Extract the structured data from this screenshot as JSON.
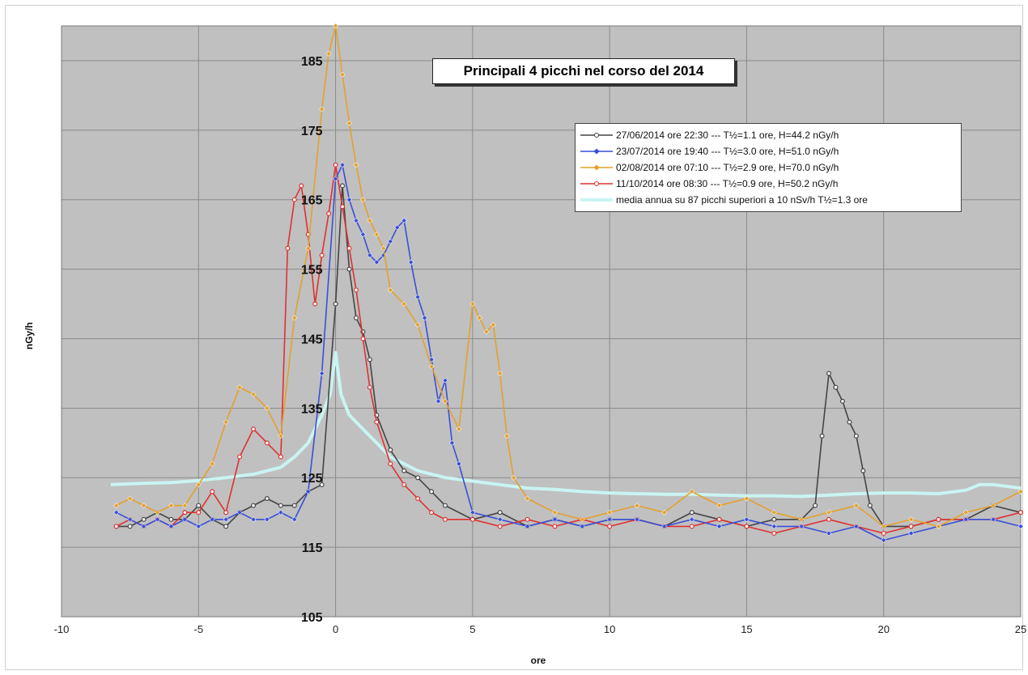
{
  "chart_data": {
    "type": "line",
    "title": "Principali 4 picchi nel corso del 2014",
    "xlabel": "ore",
    "ylabel": "nGy/h",
    "xlim": [
      -10,
      25
    ],
    "ylim": [
      105,
      190
    ],
    "x_ticks": [
      -10,
      -5,
      0,
      5,
      10,
      15,
      20,
      25
    ],
    "y_ticks": [
      105,
      115,
      125,
      135,
      145,
      155,
      165,
      175,
      185
    ],
    "grid": true,
    "legend_position": "top-right",
    "series": [
      {
        "name": "27/06/2014 ore 22:30 --- T½=1.1 ore, H=44.2 nGy/h",
        "color": "#444444",
        "marker": "circle",
        "points": [
          [
            -8,
            118
          ],
          [
            -7.5,
            118
          ],
          [
            -7,
            119
          ],
          [
            -6.5,
            120
          ],
          [
            -6,
            119
          ],
          [
            -5.5,
            119
          ],
          [
            -5,
            121
          ],
          [
            -4.5,
            119
          ],
          [
            -4,
            118
          ],
          [
            -3.5,
            120
          ],
          [
            -3,
            121
          ],
          [
            -2.5,
            122
          ],
          [
            -2,
            121
          ],
          [
            -1.5,
            121
          ],
          [
            -1,
            123
          ],
          [
            -0.5,
            124
          ],
          [
            0,
            150
          ],
          [
            0.25,
            167
          ],
          [
            0.5,
            155
          ],
          [
            0.75,
            148
          ],
          [
            1,
            146
          ],
          [
            1.25,
            142
          ],
          [
            1.5,
            134
          ],
          [
            2,
            129
          ],
          [
            2.5,
            126
          ],
          [
            3,
            125
          ],
          [
            3.5,
            123
          ],
          [
            4,
            121
          ],
          [
            5,
            119
          ],
          [
            6,
            120
          ],
          [
            7,
            118
          ],
          [
            8,
            119
          ],
          [
            9,
            118
          ],
          [
            10,
            119
          ],
          [
            11,
            119
          ],
          [
            12,
            118
          ],
          [
            13,
            120
          ],
          [
            14,
            119
          ],
          [
            15,
            118
          ],
          [
            16,
            119
          ],
          [
            17,
            119
          ],
          [
            17.5,
            121
          ],
          [
            17.75,
            131
          ],
          [
            18,
            140
          ],
          [
            18.25,
            138
          ],
          [
            18.5,
            136
          ],
          [
            18.75,
            133
          ],
          [
            19,
            131
          ],
          [
            19.25,
            126
          ],
          [
            19.5,
            121
          ],
          [
            20,
            118
          ],
          [
            21,
            118
          ],
          [
            22,
            119
          ],
          [
            23,
            119
          ],
          [
            24,
            121
          ],
          [
            25,
            120
          ]
        ]
      },
      {
        "name": "23/07/2014 ore 19:40 --- T½=3.0 ore, H=51.0 nGy/h",
        "color": "#3a4fd8",
        "marker": "diamond",
        "points": [
          [
            -8,
            120
          ],
          [
            -7.5,
            119
          ],
          [
            -7,
            118
          ],
          [
            -6.5,
            119
          ],
          [
            -6,
            118
          ],
          [
            -5.5,
            119
          ],
          [
            -5,
            118
          ],
          [
            -4.5,
            119
          ],
          [
            -4,
            119
          ],
          [
            -3.5,
            120
          ],
          [
            -3,
            119
          ],
          [
            -2.5,
            119
          ],
          [
            -2,
            120
          ],
          [
            -1.5,
            119
          ],
          [
            -1,
            123
          ],
          [
            -0.5,
            140
          ],
          [
            0,
            168
          ],
          [
            0.25,
            170
          ],
          [
            0.5,
            165
          ],
          [
            0.75,
            162
          ],
          [
            1,
            160
          ],
          [
            1.25,
            157
          ],
          [
            1.5,
            156
          ],
          [
            1.75,
            157
          ],
          [
            2,
            159
          ],
          [
            2.25,
            161
          ],
          [
            2.5,
            162
          ],
          [
            2.75,
            156
          ],
          [
            3,
            151
          ],
          [
            3.25,
            148
          ],
          [
            3.5,
            142
          ],
          [
            3.75,
            136
          ],
          [
            4,
            139
          ],
          [
            4.25,
            130
          ],
          [
            4.5,
            127
          ],
          [
            5,
            120
          ],
          [
            6,
            119
          ],
          [
            7,
            118
          ],
          [
            8,
            119
          ],
          [
            9,
            118
          ],
          [
            10,
            119
          ],
          [
            11,
            119
          ],
          [
            12,
            118
          ],
          [
            13,
            119
          ],
          [
            14,
            118
          ],
          [
            15,
            119
          ],
          [
            16,
            118
          ],
          [
            17,
            118
          ],
          [
            18,
            117
          ],
          [
            19,
            118
          ],
          [
            20,
            116
          ],
          [
            21,
            117
          ],
          [
            22,
            118
          ],
          [
            23,
            119
          ],
          [
            24,
            119
          ],
          [
            25,
            118
          ]
        ]
      },
      {
        "name": "02/08/2014 ore 07:10 --- T½=2.9 ore, H=70.0 nGy/h",
        "color": "#e3a12c",
        "marker": "diamond",
        "points": [
          [
            -8,
            121
          ],
          [
            -7.5,
            122
          ],
          [
            -7,
            121
          ],
          [
            -6.5,
            120
          ],
          [
            -6,
            121
          ],
          [
            -5.5,
            121
          ],
          [
            -5,
            124
          ],
          [
            -4.5,
            127
          ],
          [
            -4,
            133
          ],
          [
            -3.5,
            138
          ],
          [
            -3,
            137
          ],
          [
            -2.5,
            135
          ],
          [
            -2,
            131
          ],
          [
            -1.5,
            148
          ],
          [
            -1,
            158
          ],
          [
            -0.5,
            178
          ],
          [
            -0.25,
            186
          ],
          [
            0,
            190
          ],
          [
            0.25,
            183
          ],
          [
            0.5,
            176
          ],
          [
            0.75,
            170
          ],
          [
            1,
            165
          ],
          [
            1.25,
            162
          ],
          [
            1.5,
            160
          ],
          [
            1.75,
            158
          ],
          [
            2,
            152
          ],
          [
            2.5,
            150
          ],
          [
            3,
            147
          ],
          [
            3.5,
            141
          ],
          [
            4,
            136
          ],
          [
            4.5,
            132
          ],
          [
            5,
            150
          ],
          [
            5.25,
            148
          ],
          [
            5.5,
            146
          ],
          [
            5.75,
            147
          ],
          [
            6,
            140
          ],
          [
            6.25,
            131
          ],
          [
            6.5,
            125
          ],
          [
            7,
            122
          ],
          [
            8,
            120
          ],
          [
            9,
            119
          ],
          [
            10,
            120
          ],
          [
            11,
            121
          ],
          [
            12,
            120
          ],
          [
            13,
            123
          ],
          [
            14,
            121
          ],
          [
            15,
            122
          ],
          [
            16,
            120
          ],
          [
            17,
            119
          ],
          [
            18,
            120
          ],
          [
            19,
            121
          ],
          [
            20,
            118
          ],
          [
            21,
            119
          ],
          [
            22,
            118
          ],
          [
            23,
            120
          ],
          [
            24,
            121
          ],
          [
            25,
            123
          ]
        ]
      },
      {
        "name": "11/10/2014 ore 08:30 --- T½=0.9 ore, H=50.2 nGy/h",
        "color": "#e03030",
        "marker": "circle",
        "points": [
          [
            -8,
            118
          ],
          [
            -7.5,
            119
          ],
          [
            -7,
            118
          ],
          [
            -6.5,
            119
          ],
          [
            -6,
            118
          ],
          [
            -5.5,
            120
          ],
          [
            -5,
            120
          ],
          [
            -4.5,
            123
          ],
          [
            -4,
            120
          ],
          [
            -3.5,
            128
          ],
          [
            -3,
            132
          ],
          [
            -2.5,
            130
          ],
          [
            -2,
            128
          ],
          [
            -1.75,
            158
          ],
          [
            -1.5,
            165
          ],
          [
            -1.25,
            167
          ],
          [
            -1,
            160
          ],
          [
            -0.75,
            150
          ],
          [
            -0.5,
            157
          ],
          [
            -0.25,
            163
          ],
          [
            0,
            170
          ],
          [
            0.25,
            164
          ],
          [
            0.5,
            158
          ],
          [
            0.75,
            152
          ],
          [
            1,
            145
          ],
          [
            1.25,
            138
          ],
          [
            1.5,
            133
          ],
          [
            2,
            127
          ],
          [
            2.5,
            124
          ],
          [
            3,
            122
          ],
          [
            3.5,
            120
          ],
          [
            4,
            119
          ],
          [
            5,
            119
          ],
          [
            6,
            118
          ],
          [
            7,
            119
          ],
          [
            8,
            118
          ],
          [
            9,
            119
          ],
          [
            10,
            118
          ],
          [
            11,
            119
          ],
          [
            12,
            118
          ],
          [
            13,
            118
          ],
          [
            14,
            119
          ],
          [
            15,
            118
          ],
          [
            16,
            117
          ],
          [
            17,
            118
          ],
          [
            18,
            119
          ],
          [
            19,
            118
          ],
          [
            20,
            117
          ],
          [
            21,
            118
          ],
          [
            22,
            119
          ],
          [
            23,
            119
          ],
          [
            24,
            119
          ],
          [
            25,
            120
          ]
        ]
      },
      {
        "name": "media annua su 87 picchi superiori a 10 nSv/h  T½=1.3 ore",
        "color": "#c9f4f2",
        "marker": "none",
        "points": [
          [
            -8.2,
            124
          ],
          [
            -7,
            124.2
          ],
          [
            -6,
            124.3
          ],
          [
            -5,
            124.6
          ],
          [
            -4,
            125
          ],
          [
            -3,
            125.5
          ],
          [
            -2,
            126.5
          ],
          [
            -1.5,
            128
          ],
          [
            -1,
            130
          ],
          [
            -0.5,
            134
          ],
          [
            -0.2,
            137
          ],
          [
            0,
            143
          ],
          [
            0.2,
            137
          ],
          [
            0.5,
            134
          ],
          [
            1,
            132
          ],
          [
            1.5,
            130
          ],
          [
            2,
            128
          ],
          [
            2.5,
            127
          ],
          [
            3,
            126
          ],
          [
            4,
            125
          ],
          [
            5,
            124.5
          ],
          [
            6,
            124
          ],
          [
            7,
            123.5
          ],
          [
            8,
            123.3
          ],
          [
            9,
            123
          ],
          [
            10,
            122.8
          ],
          [
            11,
            122.7
          ],
          [
            12,
            122.6
          ],
          [
            13,
            122.6
          ],
          [
            14,
            122.5
          ],
          [
            15,
            122.4
          ],
          [
            16,
            122.4
          ],
          [
            17,
            122.3
          ],
          [
            18,
            122.5
          ],
          [
            19,
            122.7
          ],
          [
            20,
            122.8
          ],
          [
            21,
            122.8
          ],
          [
            22,
            122.7
          ],
          [
            23,
            123.2
          ],
          [
            23.5,
            124
          ],
          [
            24,
            124
          ],
          [
            25,
            123.5
          ]
        ]
      }
    ]
  }
}
